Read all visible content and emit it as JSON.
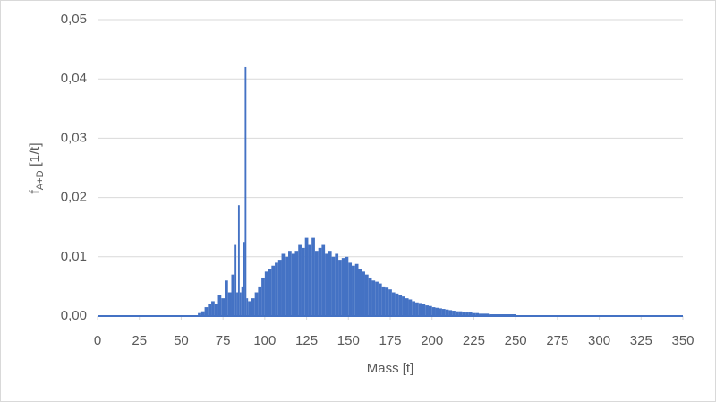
{
  "chart_data": {
    "type": "histogram",
    "xlabel": "Mass [t]",
    "ylabel": {
      "main": "f",
      "sub": "A+D",
      "rest": " [1/t]"
    },
    "color": "#4472c4",
    "grid": true,
    "xlim": [
      0,
      350
    ],
    "xticks": [
      0,
      25,
      50,
      75,
      100,
      125,
      150,
      175,
      200,
      225,
      250,
      275,
      300,
      325,
      350
    ],
    "ylim": [
      0,
      0.05
    ],
    "yticks": [
      {
        "value": 0,
        "label": "0,00"
      },
      {
        "value": 0.01,
        "label": "0,01"
      },
      {
        "value": 0.02,
        "label": "0,02"
      },
      {
        "value": 0.03,
        "label": "0,03"
      },
      {
        "value": 0.04,
        "label": "0,04"
      },
      {
        "value": 0.05,
        "label": "0,05"
      }
    ],
    "bins": [
      60,
      62,
      64,
      66,
      68,
      70,
      72,
      74,
      76,
      78,
      80,
      82,
      83,
      84,
      85,
      86,
      87,
      88,
      89,
      90,
      92,
      94,
      96,
      98,
      100,
      102,
      104,
      106,
      108,
      110,
      112,
      114,
      116,
      118,
      120,
      122,
      124,
      126,
      128,
      130,
      132,
      134,
      136,
      138,
      140,
      142,
      144,
      146,
      148,
      150,
      152,
      154,
      156,
      158,
      160,
      162,
      164,
      166,
      168,
      170,
      172,
      174,
      176,
      178,
      180,
      182,
      184,
      186,
      188,
      190,
      192,
      194,
      196,
      198,
      200,
      202,
      204,
      206,
      208,
      210,
      212,
      214,
      216,
      218,
      220,
      222,
      224,
      226,
      228,
      230,
      234,
      240,
      250
    ],
    "values": [
      0.0005,
      0.0008,
      0.0015,
      0.002,
      0.0025,
      0.002,
      0.0035,
      0.003,
      0.006,
      0.004,
      0.007,
      0.012,
      0.004,
      0.0187,
      0.004,
      0.005,
      0.0125,
      0.042,
      0.003,
      0.0025,
      0.003,
      0.004,
      0.005,
      0.0065,
      0.0075,
      0.008,
      0.0085,
      0.009,
      0.0095,
      0.0105,
      0.01,
      0.011,
      0.0105,
      0.011,
      0.012,
      0.0115,
      0.0132,
      0.012,
      0.0132,
      0.011,
      0.0115,
      0.012,
      0.0105,
      0.011,
      0.01,
      0.0105,
      0.0095,
      0.0098,
      0.01,
      0.009,
      0.0085,
      0.0088,
      0.008,
      0.0075,
      0.007,
      0.0065,
      0.006,
      0.0058,
      0.0055,
      0.005,
      0.0048,
      0.0045,
      0.004,
      0.0038,
      0.0035,
      0.0033,
      0.003,
      0.0028,
      0.0025,
      0.0023,
      0.0022,
      0.002,
      0.0018,
      0.0017,
      0.0015,
      0.0014,
      0.0013,
      0.0012,
      0.0011,
      0.001,
      0.0009,
      0.0008,
      0.0008,
      0.0007,
      0.0006,
      0.0006,
      0.0005,
      0.0005,
      0.0004,
      0.0004,
      0.0003,
      0.0003
    ]
  }
}
